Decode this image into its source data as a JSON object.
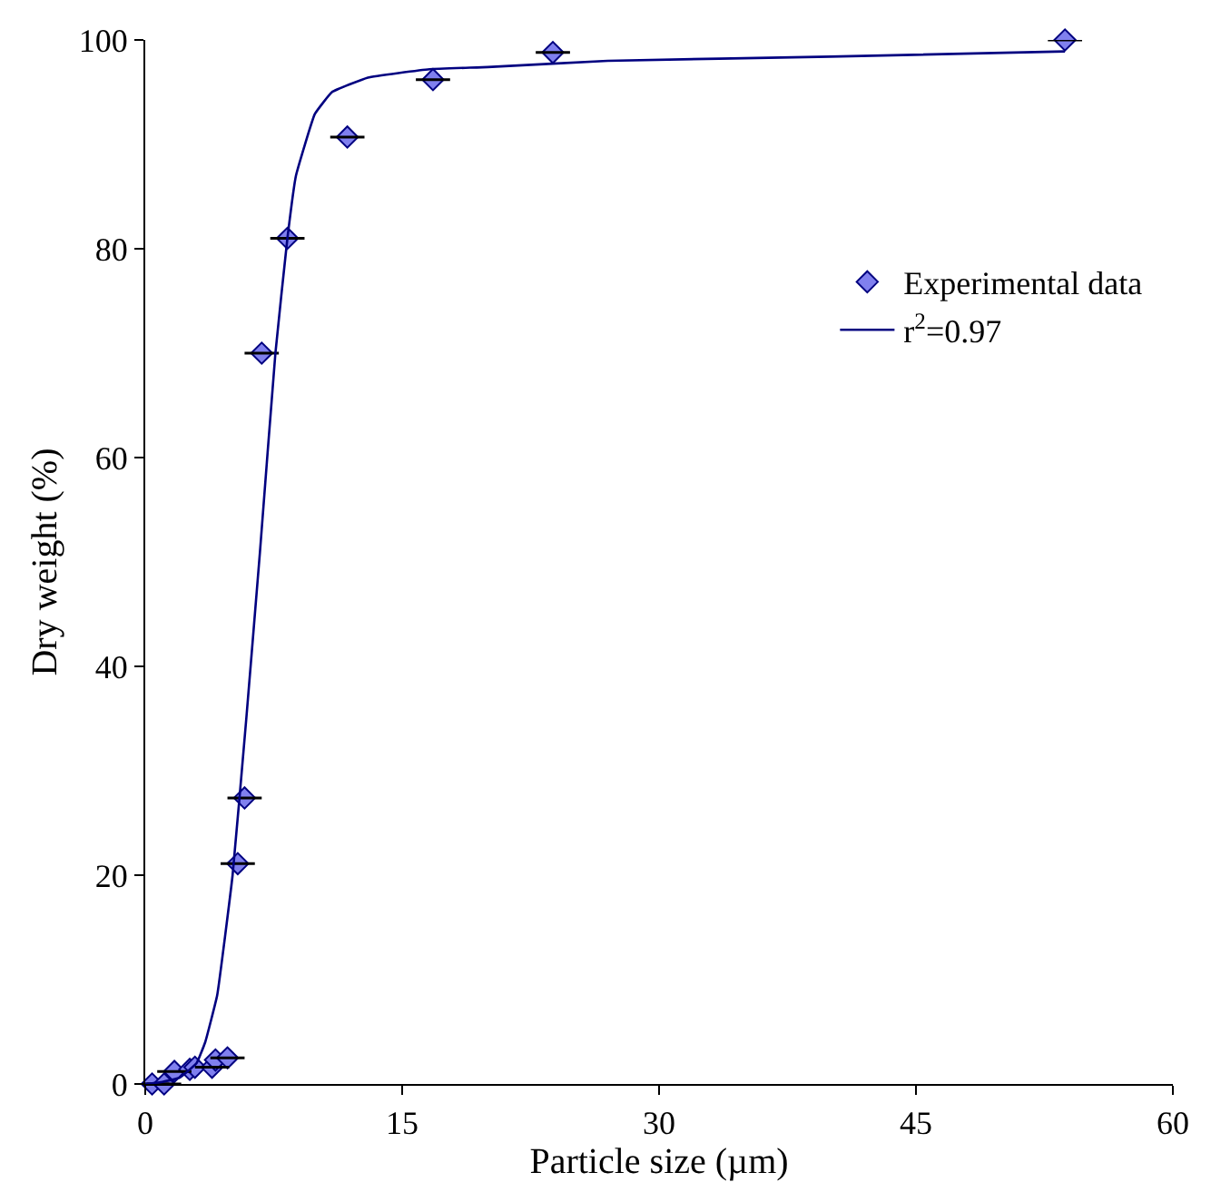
{
  "chart_data": {
    "type": "scatter",
    "xlabel": "Particle size (µm)",
    "ylabel": "Dry weight (%)",
    "xlim": [
      0,
      60
    ],
    "xticks": [
      0,
      15,
      30,
      45,
      60
    ],
    "ylim": [
      0,
      100
    ],
    "yticks": [
      0,
      20,
      40,
      60,
      80,
      100
    ],
    "legend": "top right",
    "series": [
      {
        "name": "Experimental data",
        "marker": "diamond",
        "color": "#8080ee",
        "x": [
          0.4,
          1.1,
          1.7,
          2.6,
          2.9,
          3.9,
          4.1,
          4.8,
          5.4,
          5.8,
          6.8,
          8.3,
          11.8,
          16.8,
          23.8,
          53.7
        ],
        "values": [
          0,
          0,
          1.2,
          1.4,
          1.6,
          1.6,
          2.3,
          2.5,
          21.1,
          27.4,
          70.0,
          81.0,
          90.7,
          96.2,
          98.8,
          100
        ],
        "xerrors": [
          1,
          1,
          1,
          null,
          null,
          1,
          null,
          1,
          1,
          1,
          1,
          1,
          1,
          1,
          1,
          1
        ]
      },
      {
        "name": "r$^{2}$=0.97",
        "type": "line",
        "marker": "none",
        "line_style": "solid",
        "color": "#000080",
        "x": [
          0,
          1,
          2,
          3,
          3.5,
          4.2,
          5.1,
          5.9,
          6.7,
          7.6,
          8.3,
          8.8,
          9.9,
          10.9,
          13,
          16.6,
          20,
          27,
          40,
          53.7
        ],
        "values": [
          0,
          0.2,
          0.6,
          2,
          4,
          8.5,
          20,
          35,
          51,
          70,
          81,
          87,
          92.9,
          95,
          96.4,
          97.2,
          97.4,
          98,
          98.4,
          98.9
        ]
      }
    ]
  }
}
